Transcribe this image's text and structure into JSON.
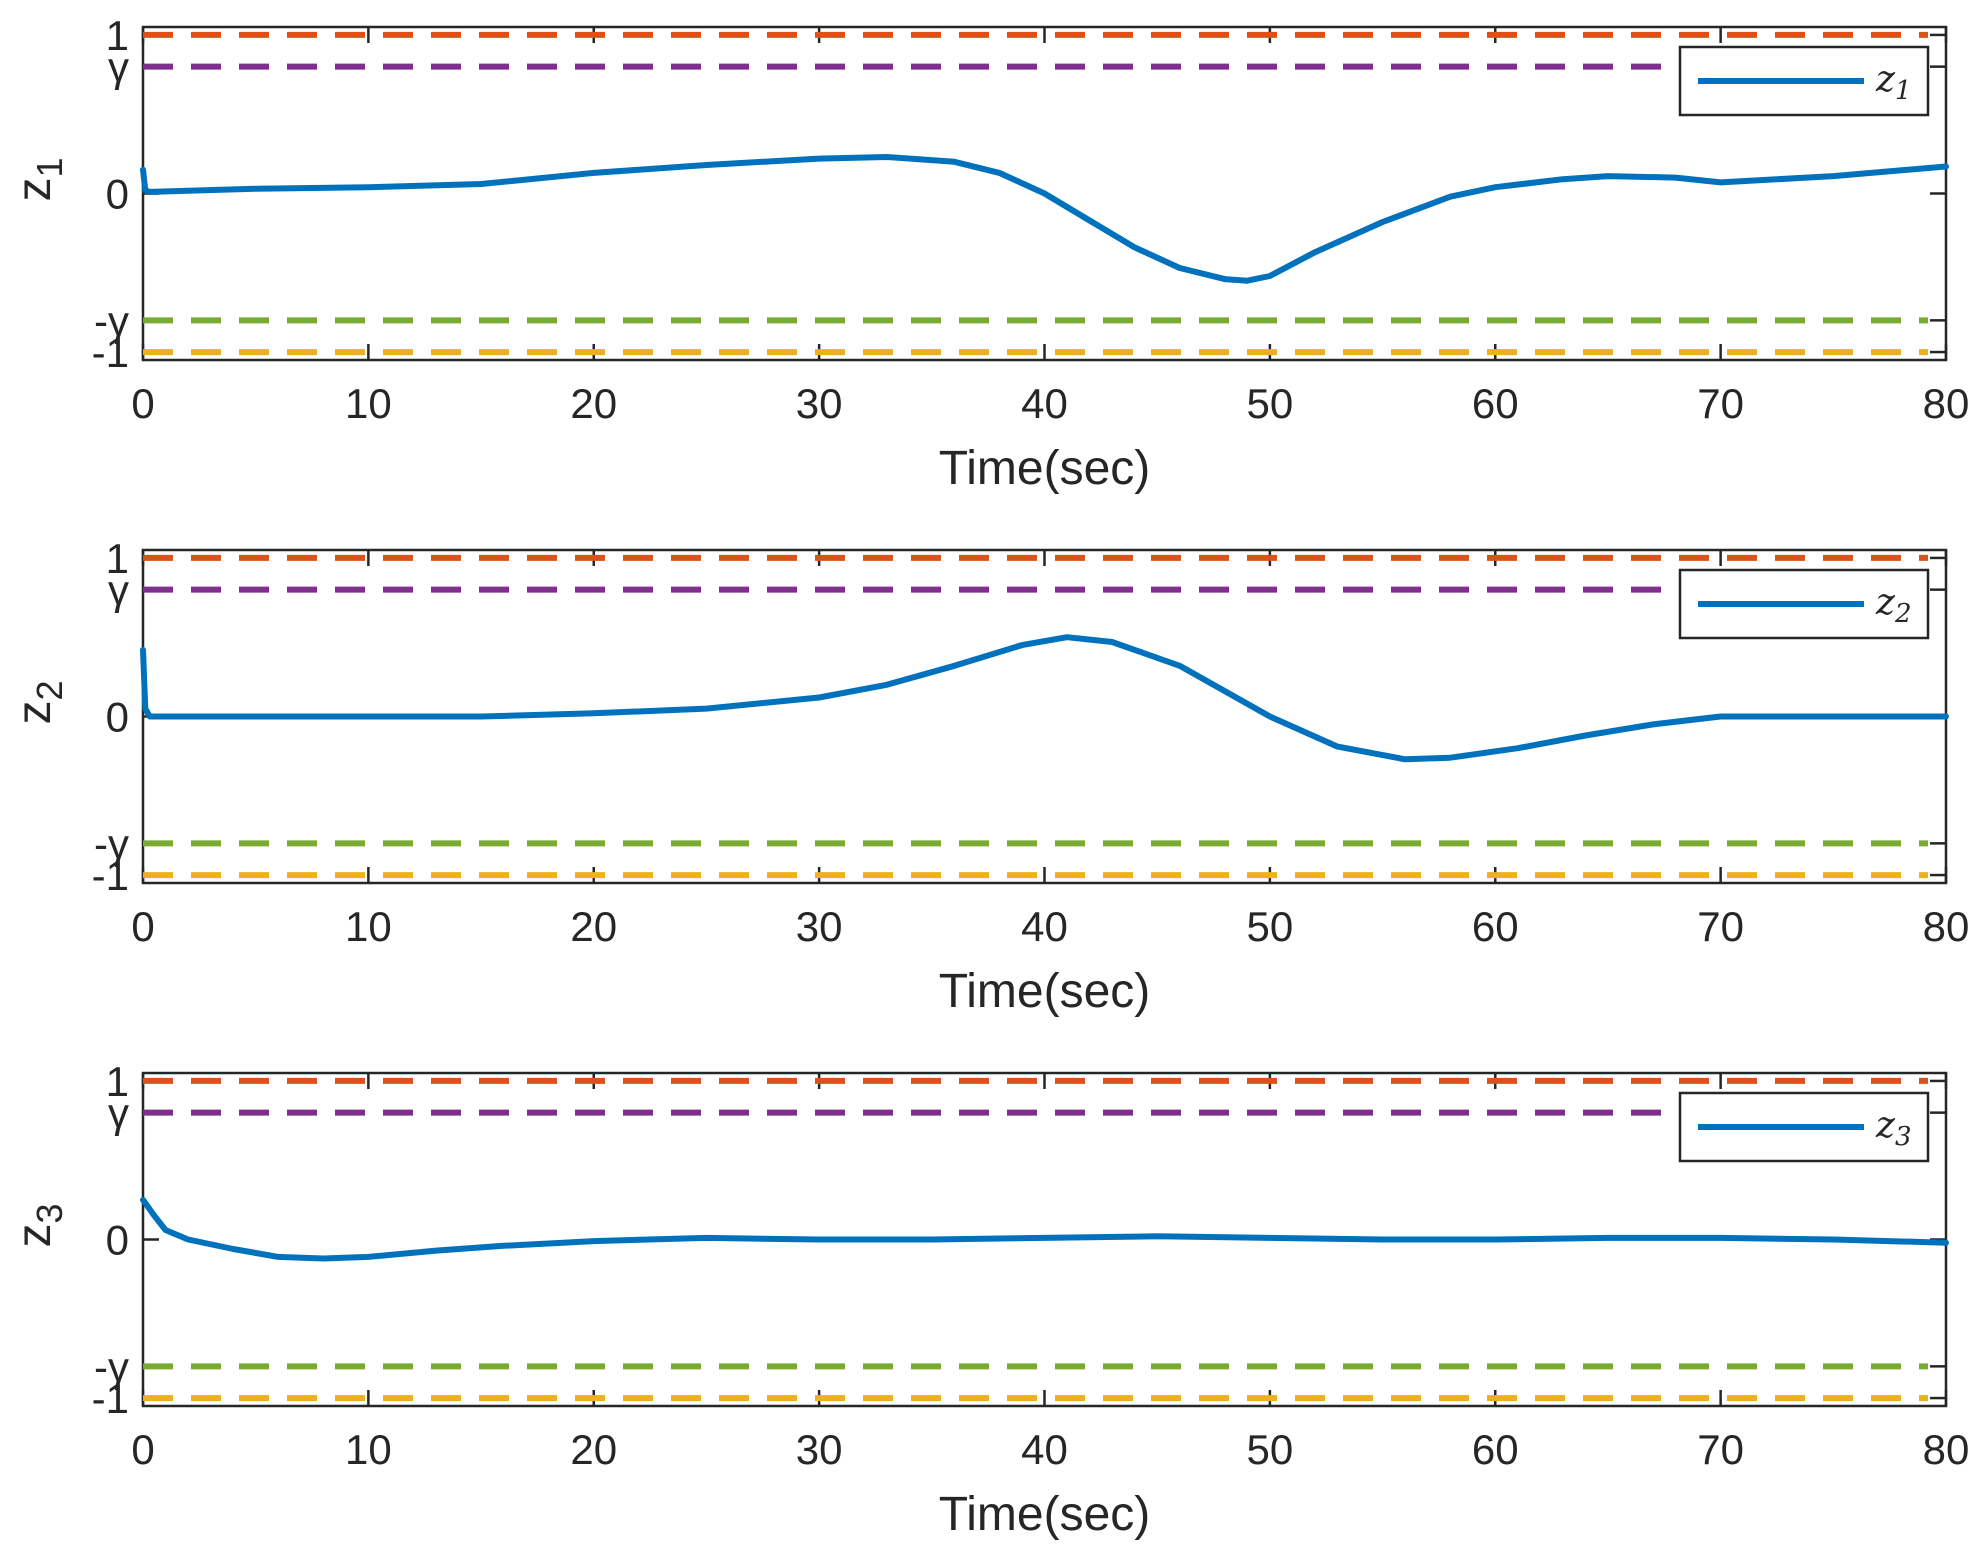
{
  "chart_data": [
    {
      "type": "line",
      "xlabel": "Time(sec)",
      "ylabel": "z",
      "ylabel_sub": "1",
      "xlim": [
        0,
        80
      ],
      "ylim": [
        -1.05,
        1.05
      ],
      "xticks": [
        0,
        10,
        20,
        30,
        40,
        50,
        60,
        70,
        80
      ],
      "xtick_labels": [
        "0",
        "10",
        "20",
        "30",
        "40",
        "50",
        "60",
        "70",
        "80"
      ],
      "yticks": [
        1,
        0.8,
        0,
        -0.8,
        -1
      ],
      "ytick_labels": [
        "1",
        "γ",
        "0",
        "-γ",
        "-1"
      ],
      "legend": {
        "label": "z",
        "sub": "1",
        "position": "top-right"
      },
      "bounds": [
        {
          "name": "upper-bound-1",
          "value": 1,
          "color": "#D95319"
        },
        {
          "name": "gamma-bound",
          "value": 0.8,
          "color": "#7E2F8E"
        },
        {
          "name": "neg-gamma-bound",
          "value": -0.8,
          "color": "#77AC30"
        },
        {
          "name": "lower-bound-1",
          "value": -1,
          "color": "#EDB120"
        }
      ],
      "series": [
        {
          "name": "z1",
          "color": "#0072BD",
          "x": [
            0,
            0.1,
            0.3,
            5,
            10,
            15,
            20,
            25,
            30,
            33,
            36,
            38,
            40,
            42,
            44,
            46,
            48,
            49,
            50,
            52,
            55,
            58,
            60,
            63,
            65,
            68,
            70,
            75,
            80
          ],
          "y": [
            0.15,
            0.02,
            0.01,
            0.03,
            0.04,
            0.06,
            0.13,
            0.18,
            0.22,
            0.23,
            0.2,
            0.13,
            0.0,
            -0.17,
            -0.34,
            -0.47,
            -0.54,
            -0.55,
            -0.52,
            -0.37,
            -0.18,
            -0.02,
            0.04,
            0.09,
            0.11,
            0.1,
            0.07,
            0.11,
            0.17
          ]
        }
      ]
    },
    {
      "type": "line",
      "xlabel": "Time(sec)",
      "ylabel": "z",
      "ylabel_sub": "2",
      "xlim": [
        0,
        80
      ],
      "ylim": [
        -1.05,
        1.05
      ],
      "xticks": [
        0,
        10,
        20,
        30,
        40,
        50,
        60,
        70,
        80
      ],
      "xtick_labels": [
        "0",
        "10",
        "20",
        "30",
        "40",
        "50",
        "60",
        "70",
        "80"
      ],
      "yticks": [
        1,
        0.8,
        0,
        -0.8,
        -1
      ],
      "ytick_labels": [
        "1",
        "γ",
        "0",
        "-γ",
        "-1"
      ],
      "legend": {
        "label": "z",
        "sub": "2",
        "position": "top-right"
      },
      "bounds": [
        {
          "name": "upper-bound-1",
          "value": 1,
          "color": "#D95319"
        },
        {
          "name": "gamma-bound",
          "value": 0.8,
          "color": "#7E2F8E"
        },
        {
          "name": "neg-gamma-bound",
          "value": -0.8,
          "color": "#77AC30"
        },
        {
          "name": "lower-bound-1",
          "value": -1,
          "color": "#EDB120"
        }
      ],
      "series": [
        {
          "name": "z2",
          "color": "#0072BD",
          "x": [
            0,
            0.1,
            0.3,
            5,
            10,
            15,
            20,
            25,
            30,
            33,
            36,
            39,
            41,
            43,
            46,
            50,
            53,
            56,
            58,
            61,
            64,
            67,
            70,
            75,
            80
          ],
          "y": [
            0.42,
            0.05,
            0.0,
            0.0,
            0.0,
            0.0,
            0.02,
            0.05,
            0.12,
            0.2,
            0.32,
            0.45,
            0.5,
            0.47,
            0.32,
            0.0,
            -0.19,
            -0.27,
            -0.26,
            -0.2,
            -0.12,
            -0.05,
            0.0,
            0.0,
            0.0
          ]
        }
      ]
    },
    {
      "type": "line",
      "xlabel": "Time(sec)",
      "ylabel": "z",
      "ylabel_sub": "3",
      "xlim": [
        0,
        80
      ],
      "ylim": [
        -1.05,
        1.05
      ],
      "xticks": [
        0,
        10,
        20,
        30,
        40,
        50,
        60,
        70,
        80
      ],
      "xtick_labels": [
        "0",
        "10",
        "20",
        "30",
        "40",
        "50",
        "60",
        "70",
        "80"
      ],
      "yticks": [
        1,
        0.8,
        0,
        -0.8,
        -1
      ],
      "ytick_labels": [
        "1",
        "γ",
        "0",
        "-γ",
        "-1"
      ],
      "legend": {
        "label": "z",
        "sub": "3",
        "position": "top-right"
      },
      "bounds": [
        {
          "name": "upper-bound-1",
          "value": 1,
          "color": "#D95319"
        },
        {
          "name": "gamma-bound",
          "value": 0.8,
          "color": "#7E2F8E"
        },
        {
          "name": "neg-gamma-bound",
          "value": -0.8,
          "color": "#77AC30"
        },
        {
          "name": "lower-bound-1",
          "value": -1,
          "color": "#EDB120"
        }
      ],
      "series": [
        {
          "name": "z3",
          "color": "#0072BD",
          "x": [
            0,
            0.5,
            1,
            2,
            4,
            6,
            8,
            10,
            13,
            16,
            20,
            25,
            30,
            35,
            40,
            45,
            50,
            55,
            60,
            65,
            70,
            75,
            80
          ],
          "y": [
            0.25,
            0.15,
            0.06,
            0.0,
            -0.06,
            -0.11,
            -0.12,
            -0.11,
            -0.07,
            -0.04,
            -0.01,
            0.01,
            0.0,
            0.0,
            0.01,
            0.02,
            0.01,
            0.0,
            0.0,
            0.01,
            0.01,
            0.0,
            -0.02
          ]
        }
      ]
    }
  ]
}
